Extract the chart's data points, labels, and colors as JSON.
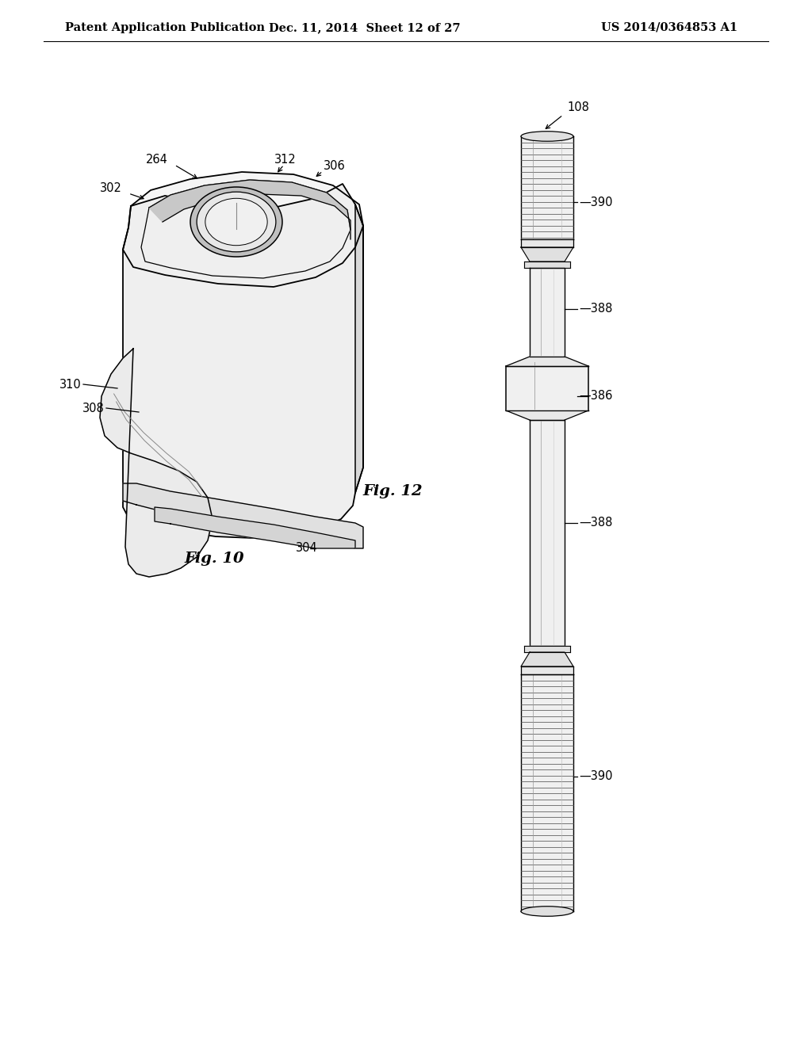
{
  "bg_color": "#ffffff",
  "edge_color": "#000000",
  "light_gray": "#e8e8e8",
  "mid_gray": "#d0d0d0",
  "dark_gray": "#b0b0b0",
  "header_left": "Patent Application Publication",
  "header_mid": "Dec. 11, 2014  Sheet 12 of 27",
  "header_right": "US 2014/0364853 A1",
  "fig10_label": "Fig. 10",
  "fig12_label": "Fig. 12",
  "annotation_fontsize": 10.5,
  "fig_label_fontsize": 14
}
